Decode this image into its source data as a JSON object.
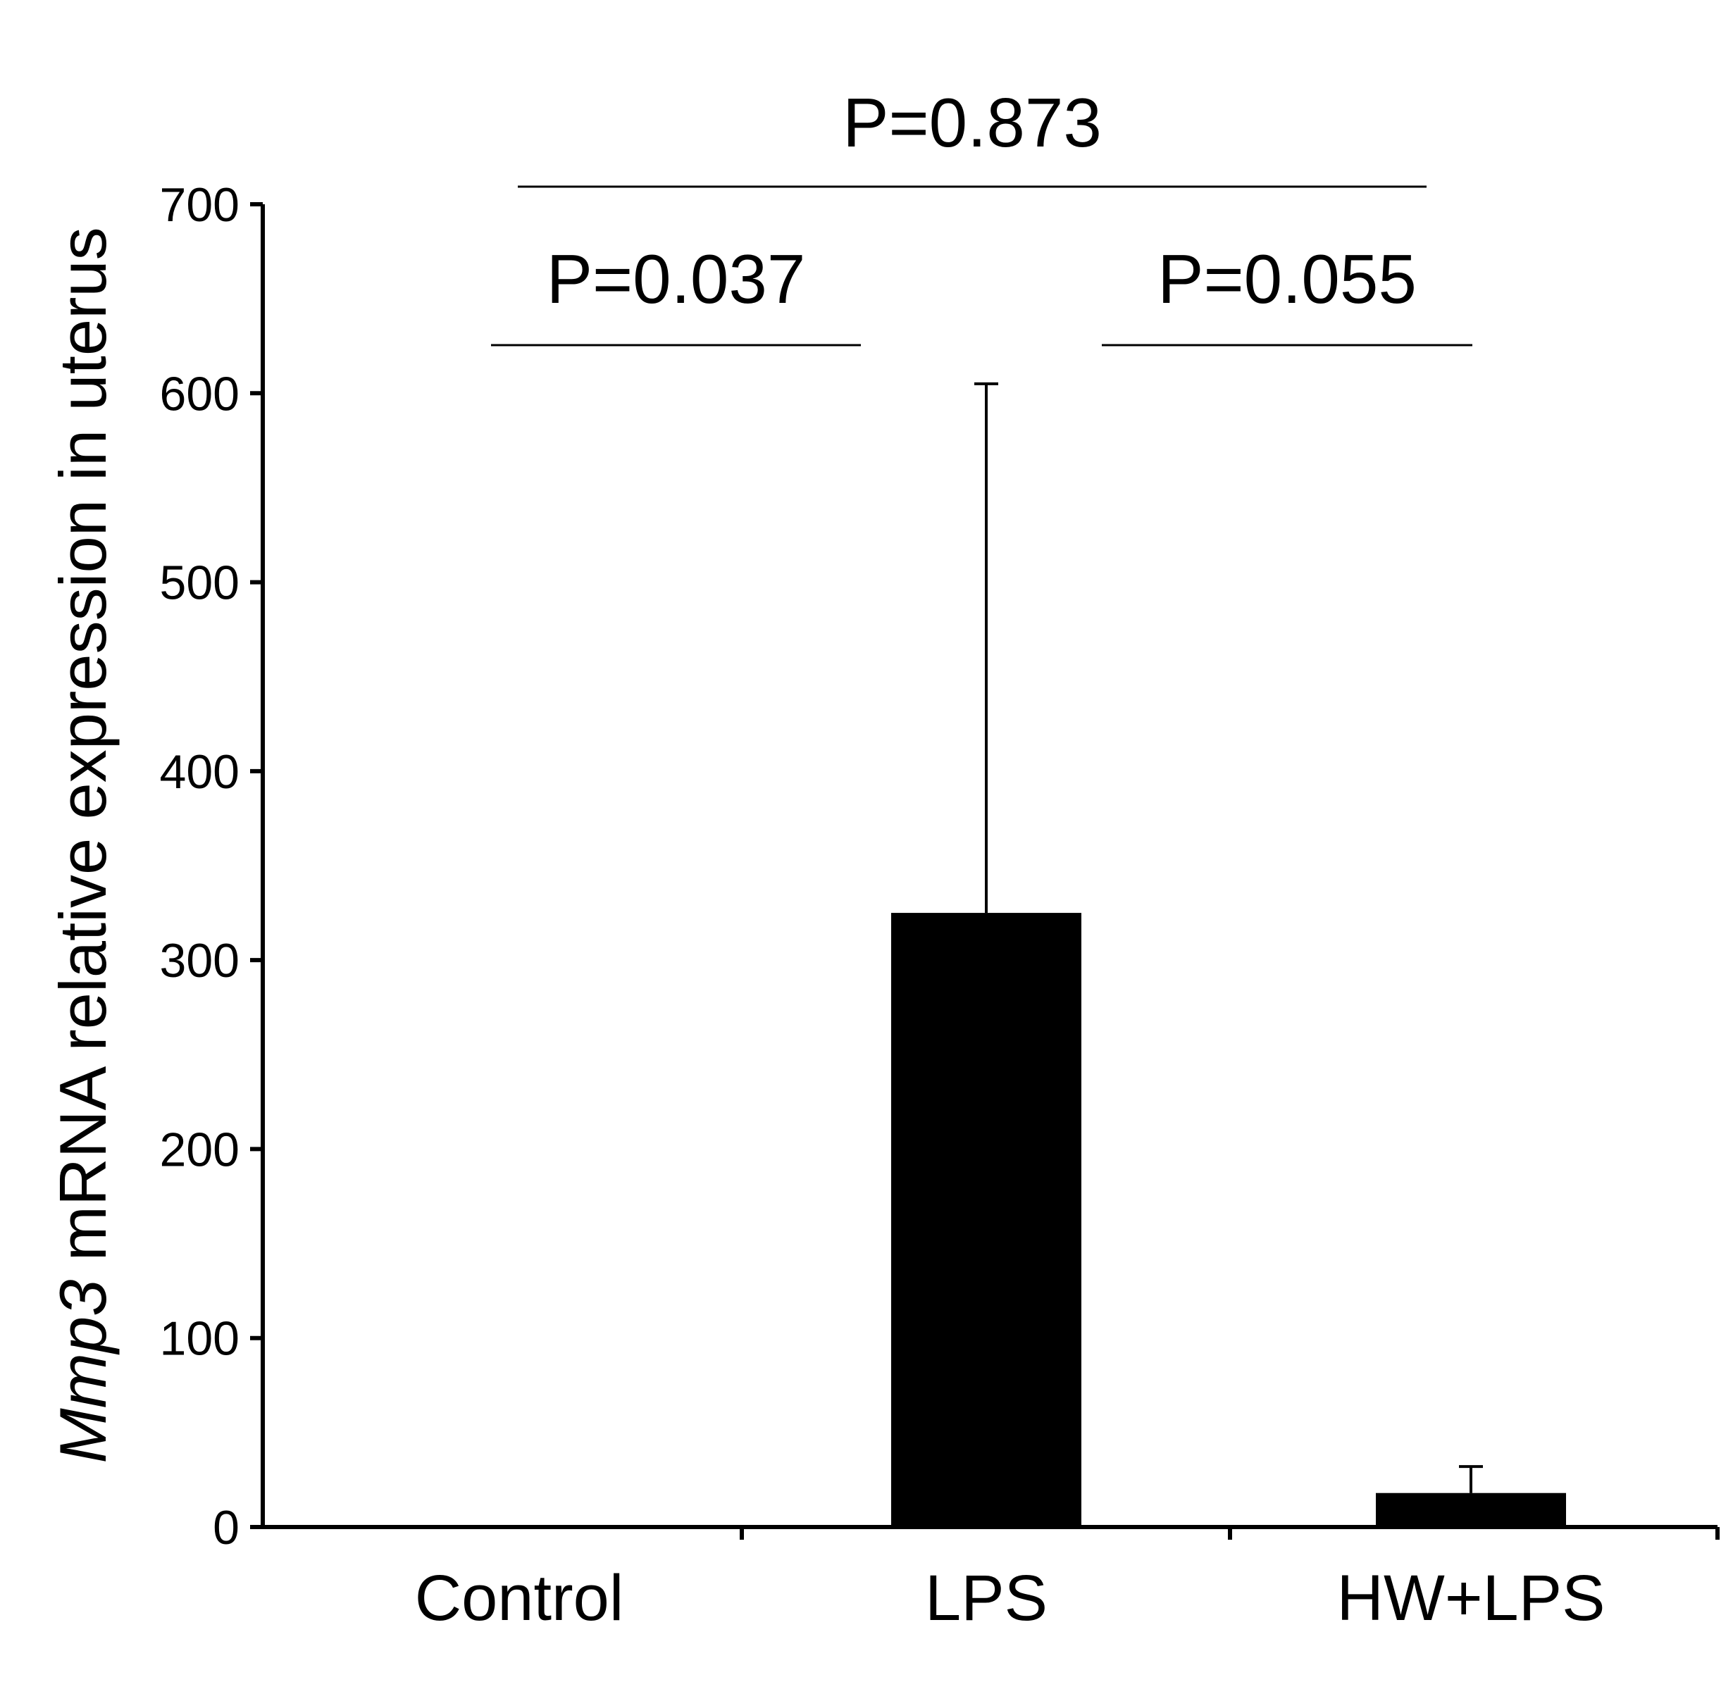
{
  "chart_data": {
    "type": "bar",
    "title": "",
    "xlabel": "",
    "ylabel_gene": "Mmp3",
    "ylabel_rest": " mRNA relative expression in uterus",
    "categories": [
      "Control",
      "LPS",
      "HW+LPS"
    ],
    "values": [
      1,
      325,
      18
    ],
    "error_upper": [
      1,
      605,
      32
    ],
    "ylim": [
      0,
      700
    ],
    "yticks": [
      0,
      100,
      200,
      300,
      400,
      500,
      600,
      700
    ],
    "bar_color": "#000000",
    "grid": false,
    "legend": "none",
    "significance": [
      {
        "from": "Control",
        "to": "LPS",
        "label": "P=0.037"
      },
      {
        "from": "LPS",
        "to": "HW+LPS",
        "label": "P=0.055"
      },
      {
        "from": "Control",
        "to": "HW+LPS",
        "label": "P=0.873"
      }
    ]
  }
}
